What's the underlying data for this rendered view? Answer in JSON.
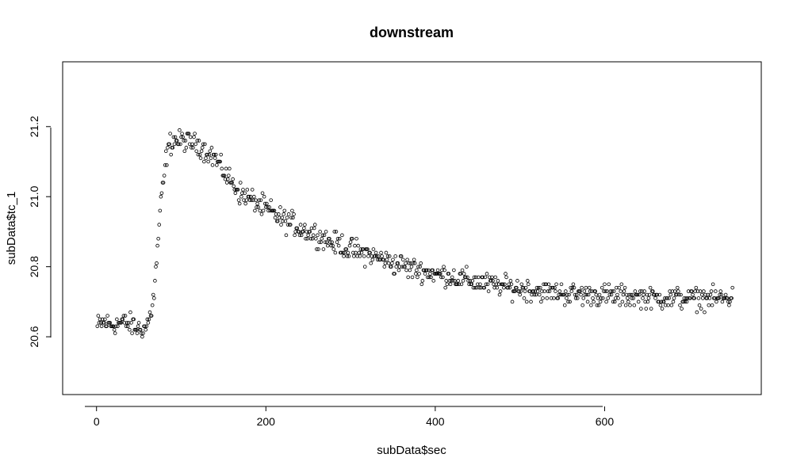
{
  "chart_data": {
    "type": "scatter",
    "title": "downstream",
    "xlabel": "subData$sec",
    "ylabel": "subData$tc_1",
    "xlim": [
      -40,
      785
    ],
    "ylim": [
      20.435,
      21.385
    ],
    "x_ticks": [
      0,
      200,
      400,
      600
    ],
    "y_ticks": [
      20.6,
      20.8,
      21.0,
      21.2
    ],
    "x_tick_labels": [
      "0",
      "200",
      "400",
      "600"
    ],
    "y_tick_labels": [
      "20.6",
      "20.8",
      "21.0",
      "21.2"
    ],
    "grid": false,
    "legend": "none",
    "marker": "open-circle",
    "marker_color": "#000000",
    "profile_points": [
      [
        1,
        20.63
      ],
      [
        10,
        20.64
      ],
      [
        20,
        20.635
      ],
      [
        30,
        20.64
      ],
      [
        40,
        20.635
      ],
      [
        50,
        20.62
      ],
      [
        58,
        20.625
      ],
      [
        62,
        20.65
      ],
      [
        65,
        20.68
      ],
      [
        68,
        20.72
      ],
      [
        71,
        20.82
      ],
      [
        74,
        20.92
      ],
      [
        77,
        21.0
      ],
      [
        80,
        21.06
      ],
      [
        83,
        21.12
      ],
      [
        86,
        21.15
      ],
      [
        90,
        21.16
      ],
      [
        100,
        21.16
      ],
      [
        110,
        21.155
      ],
      [
        120,
        21.15
      ],
      [
        130,
        21.13
      ],
      [
        140,
        21.11
      ],
      [
        150,
        21.07
      ],
      [
        160,
        21.04
      ],
      [
        170,
        21.01
      ],
      [
        180,
        20.995
      ],
      [
        190,
        20.98
      ],
      [
        200,
        20.965
      ],
      [
        210,
        20.95
      ],
      [
        220,
        20.935
      ],
      [
        230,
        20.925
      ],
      [
        240,
        20.91
      ],
      [
        250,
        20.9
      ],
      [
        260,
        20.89
      ],
      [
        270,
        20.88
      ],
      [
        280,
        20.87
      ],
      [
        290,
        20.86
      ],
      [
        300,
        20.85
      ],
      [
        320,
        20.835
      ],
      [
        340,
        20.82
      ],
      [
        360,
        20.805
      ],
      [
        380,
        20.79
      ],
      [
        400,
        20.78
      ],
      [
        420,
        20.77
      ],
      [
        440,
        20.76
      ],
      [
        460,
        20.752
      ],
      [
        480,
        20.745
      ],
      [
        500,
        20.738
      ],
      [
        520,
        20.732
      ],
      [
        540,
        20.727
      ],
      [
        560,
        20.722
      ],
      [
        580,
        20.72
      ],
      [
        600,
        20.718
      ],
      [
        620,
        20.716
      ],
      [
        640,
        20.714
      ],
      [
        660,
        20.712
      ],
      [
        680,
        20.711
      ],
      [
        700,
        20.71
      ],
      [
        720,
        20.71
      ],
      [
        740,
        20.71
      ],
      [
        751,
        20.71
      ]
    ],
    "noise_amplitude": 0.03,
    "x_start": 1,
    "x_end": 751,
    "x_step": 1
  }
}
